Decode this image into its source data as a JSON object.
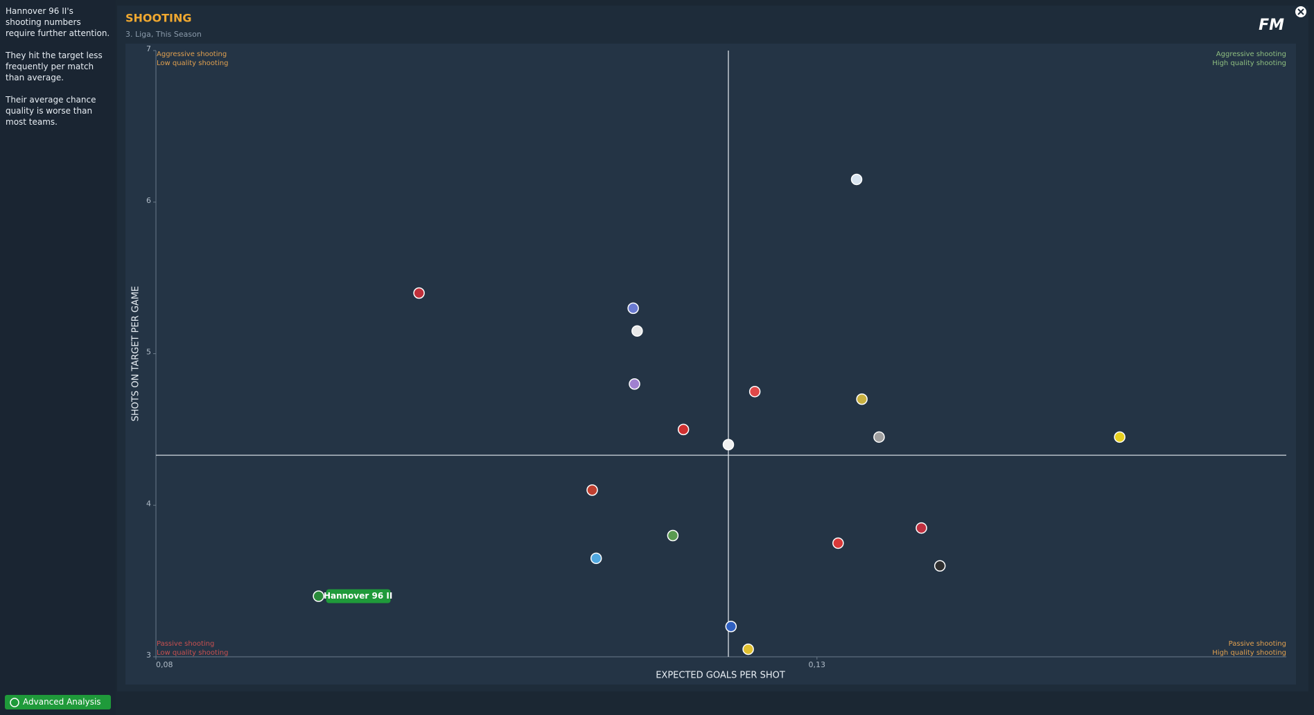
{
  "sidebar": {
    "paragraphs": [
      "Hannover 96 II's shooting numbers require further attention.",
      "They hit the target less frequently per match than average.",
      "Their average chance quality is worse than most teams."
    ]
  },
  "header": {
    "title": "SHOOTING",
    "subtitle": "3. Liga, This Season",
    "logo": "FM"
  },
  "button": {
    "label": "Advanced Analysis"
  },
  "chart_data": {
    "type": "scatter",
    "x_label": "EXPECTED GOALS PER SHOT",
    "y_label": "SHOTS ON TARGET PER GAME",
    "xlim": [
      0.08,
      0.1655
    ],
    "ylim": [
      3,
      7
    ],
    "xticks": [
      {
        "value": 0.08,
        "label": "0,08"
      },
      {
        "value": 0.13,
        "label": "0,13"
      }
    ],
    "yticks": [
      3,
      4,
      5,
      6,
      7
    ],
    "reference_lines": {
      "x": 0.1233,
      "y": 4.33
    },
    "quadrants": [
      {
        "corner": "top-left",
        "color": "#e0a050",
        "lines": [
          "Aggressive shooting",
          "Low quality shooting"
        ]
      },
      {
        "corner": "top-right",
        "color": "#8fbf80",
        "lines": [
          "Aggressive shooting",
          "High quality shooting"
        ]
      },
      {
        "corner": "bottom-left",
        "color": "#c85050",
        "lines": [
          "Passive shooting",
          "Low quality shooting"
        ]
      },
      {
        "corner": "bottom-right",
        "color": "#e0a050",
        "lines": [
          "Passive shooting",
          "High quality shooting"
        ]
      }
    ],
    "x": [
      0.0999,
      0.1161,
      0.1164,
      0.1162,
      0.1199,
      0.1233,
      0.1253,
      0.133,
      0.1334,
      0.1347,
      0.1529,
      0.113,
      0.1191,
      0.1133,
      0.0923,
      0.1316,
      0.1379,
      0.1393,
      0.1235,
      0.1248
    ],
    "values": [
      5.4,
      5.3,
      5.15,
      4.8,
      4.5,
      4.4,
      4.75,
      6.15,
      4.7,
      4.45,
      4.45,
      4.1,
      3.8,
      3.65,
      3.4,
      3.75,
      3.85,
      3.6,
      3.2,
      3.05
    ],
    "labels": [
      null,
      null,
      null,
      null,
      null,
      null,
      null,
      null,
      null,
      null,
      null,
      null,
      null,
      null,
      "Hannover 96 II",
      null,
      null,
      null,
      null,
      null
    ],
    "colors": [
      "#c0303a",
      "#6a7ad0",
      "#e8e8e8",
      "#a080d0",
      "#d03030",
      "#f0f0f0",
      "#e04848",
      "#d8e4f0",
      "#c8b040",
      "#a0a0a0",
      "#e8d020",
      "#c04030",
      "#5a9a50",
      "#50a8e0",
      "#2a8a3a",
      "#d83838",
      "#c03040",
      "#303030",
      "#3060c0",
      "#e0c030"
    ],
    "highlight_color": "#1f9a3a"
  }
}
